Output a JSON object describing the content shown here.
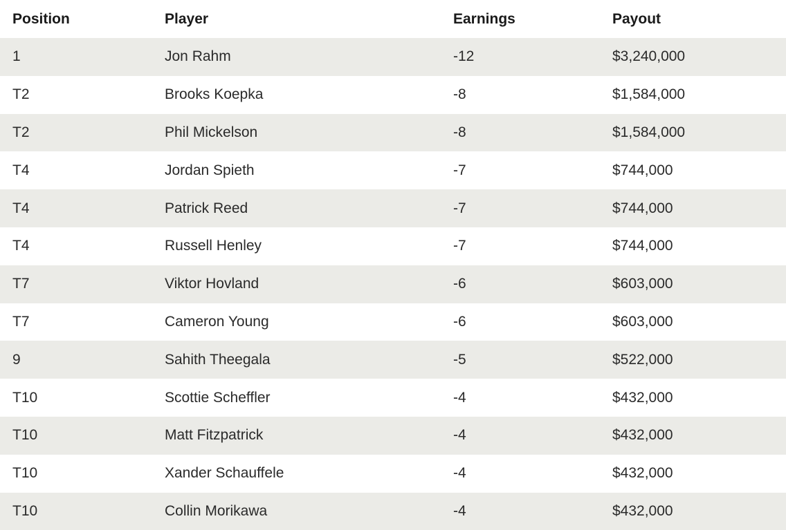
{
  "table": {
    "headers": [
      "Position",
      "Player",
      "Earnings",
      "Payout"
    ],
    "rows": [
      [
        "1",
        "Jon Rahm",
        "-12",
        "$3,240,000"
      ],
      [
        "T2",
        "Brooks Koepka",
        "-8",
        "$1,584,000"
      ],
      [
        "T2",
        "Phil Mickelson",
        "-8",
        "$1,584,000"
      ],
      [
        "T4",
        "Jordan Spieth",
        "-7",
        "$744,000"
      ],
      [
        "T4",
        "Patrick Reed",
        "-7",
        "$744,000"
      ],
      [
        "T4",
        "Russell Henley",
        "-7",
        "$744,000"
      ],
      [
        "T7",
        "Viktor Hovland",
        "-6",
        "$603,000"
      ],
      [
        "T7",
        "Cameron Young",
        "-6",
        "$603,000"
      ],
      [
        "9",
        "Sahith Theegala",
        "-5",
        "$522,000"
      ],
      [
        "T10",
        "Scottie Scheffler",
        "-4",
        "$432,000"
      ],
      [
        "T10",
        "Matt Fitzpatrick",
        "-4",
        "$432,000"
      ],
      [
        "T10",
        "Xander Schauffele",
        "-4",
        "$432,000"
      ],
      [
        "T10",
        "Collin Morikawa",
        "-4",
        "$432,000"
      ]
    ]
  },
  "colors": {
    "stripe": "#ebebe7",
    "background": "#ffffff",
    "text": "#222222"
  }
}
